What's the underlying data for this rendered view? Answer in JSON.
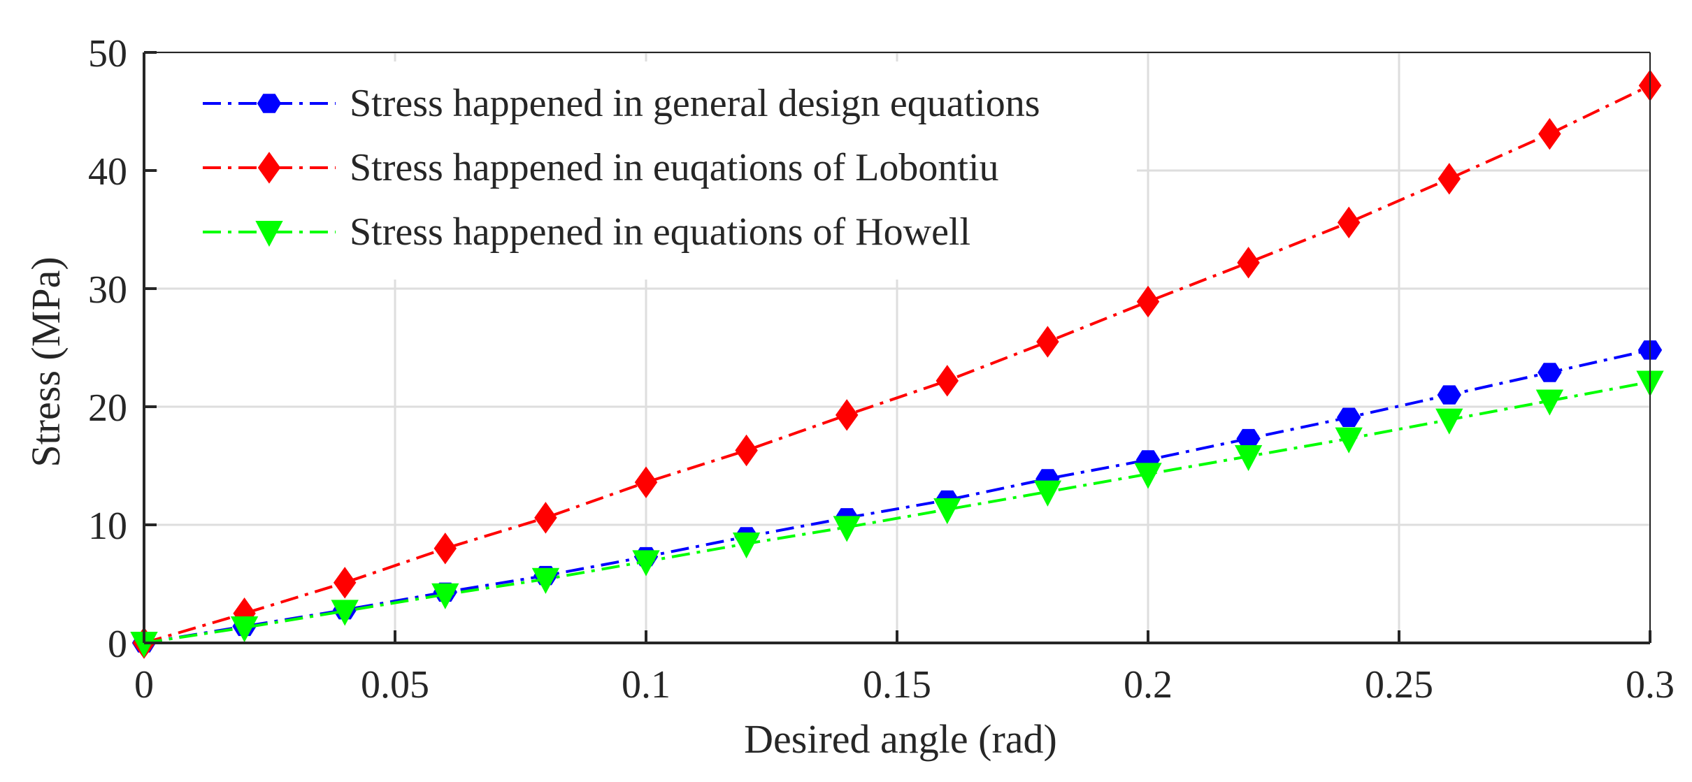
{
  "chart_data": {
    "type": "line",
    "title": "",
    "xlabel": "Desired angle (rad)",
    "ylabel": "Stress (MPa)",
    "xlim": [
      0,
      0.3
    ],
    "ylim": [
      0,
      50
    ],
    "grid": true,
    "legend_position": "top-left",
    "x_ticks": [
      0,
      0.05,
      0.1,
      0.15,
      0.2,
      0.25,
      0.3
    ],
    "x_tick_labels": [
      "0",
      "0.05",
      "0.1",
      "0.15",
      "0.2",
      "0.25",
      "0.3"
    ],
    "y_ticks": [
      0,
      10,
      20,
      30,
      40,
      50
    ],
    "y_tick_labels": [
      "0",
      "10",
      "20",
      "30",
      "40",
      "50"
    ],
    "x": [
      0,
      0.02,
      0.04,
      0.06,
      0.08,
      0.1,
      0.12,
      0.14,
      0.16,
      0.18,
      0.2,
      0.22,
      0.24,
      0.26,
      0.28,
      0.3
    ],
    "series": [
      {
        "name": "Stress happened in general design equations",
        "color": "#0000ff",
        "marker": "hexagon",
        "values": [
          0,
          1.4,
          2.8,
          4.3,
          5.7,
          7.3,
          9.0,
          10.6,
          12.1,
          13.9,
          15.5,
          17.3,
          19.1,
          21.0,
          22.9,
          24.8
        ]
      },
      {
        "name": "Stress happened in euqations of Lobontiu",
        "color": "#ff0000",
        "marker": "diamond",
        "values": [
          0,
          2.5,
          5.1,
          8.0,
          10.6,
          13.6,
          16.3,
          19.3,
          22.2,
          25.5,
          28.9,
          32.2,
          35.6,
          39.3,
          43.1,
          47.2
        ]
      },
      {
        "name": "Stress happened in equations of Howell",
        "color": "#00ff00",
        "marker": "triangle-down",
        "values": [
          0,
          1.3,
          2.7,
          4.1,
          5.4,
          6.9,
          8.4,
          9.8,
          11.3,
          12.8,
          14.3,
          15.8,
          17.3,
          18.9,
          20.5,
          22.1
        ]
      }
    ]
  }
}
